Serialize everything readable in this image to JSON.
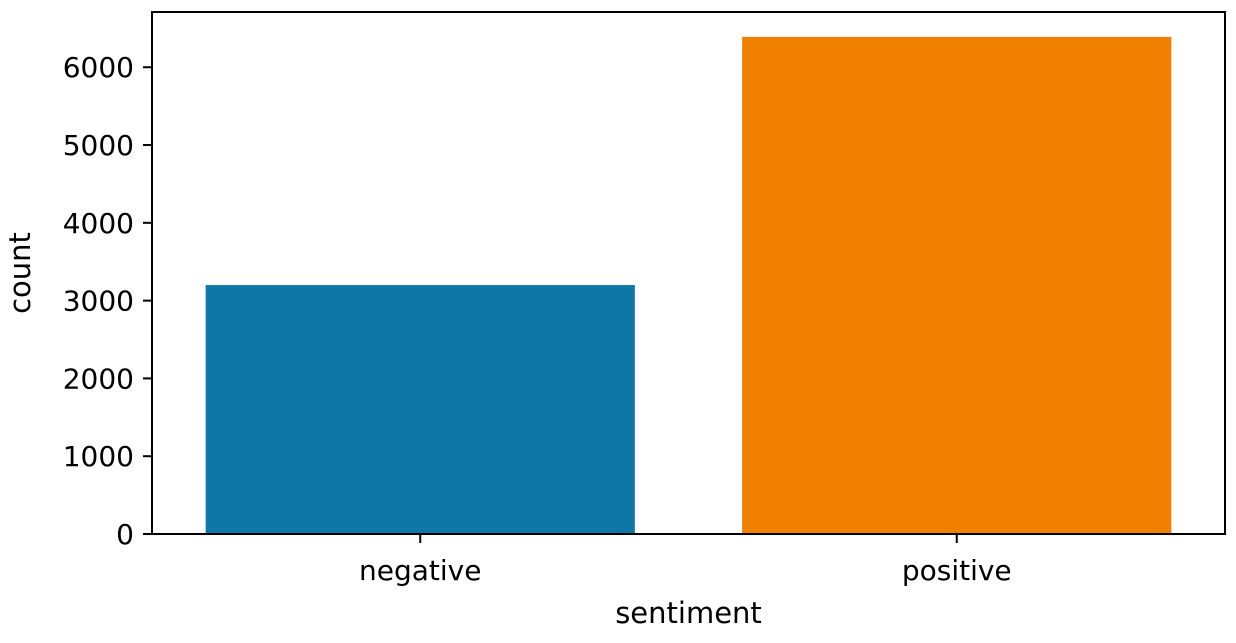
{
  "chart_data": {
    "type": "bar",
    "title": "",
    "xlabel": "sentiment",
    "ylabel": "count",
    "categories": [
      "negative",
      "positive"
    ],
    "values": [
      3200,
      6390
    ],
    "ylim": [
      0,
      6710
    ],
    "yticks": [
      0,
      1000,
      2000,
      3000,
      4000,
      5000,
      6000
    ],
    "grid": false,
    "legend": "none",
    "colors": [
      "#0f76a8",
      "#f17f00"
    ]
  }
}
